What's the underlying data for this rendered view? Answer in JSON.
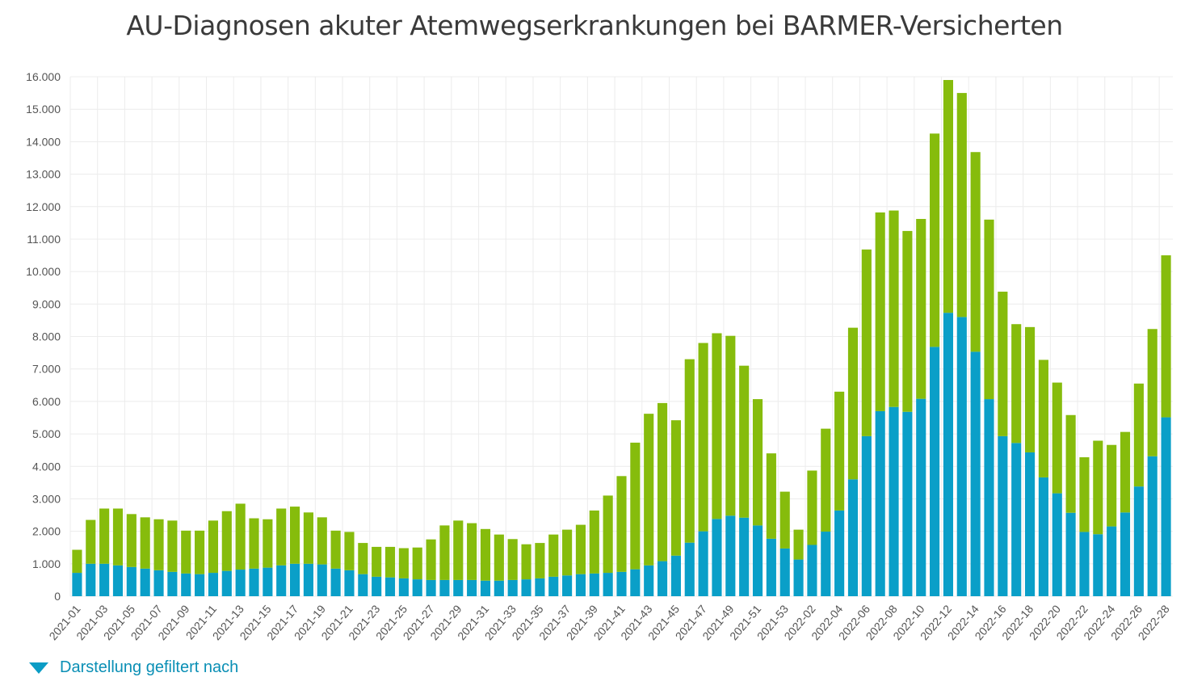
{
  "chart_data": {
    "type": "bar",
    "stacked": true,
    "title": "AU-Diagnosen akuter Atemwegserkrankungen bei BARMER-Versicherten",
    "xlabel": "",
    "ylabel": "",
    "ylim": [
      0,
      16000
    ],
    "yticks": [
      "0",
      "1.000",
      "2.000",
      "3.000",
      "4.000",
      "5.000",
      "6.000",
      "7.000",
      "8.000",
      "9.000",
      "10.000",
      "11.000",
      "12.000",
      "13.000",
      "14.000",
      "15.000",
      "16.000"
    ],
    "grid": true,
    "tick_every": 2,
    "categories": [
      "2021-01",
      "2021-02",
      "2021-03",
      "2021-04",
      "2021-05",
      "2021-06",
      "2021-07",
      "2021-08",
      "2021-09",
      "2021-10",
      "2021-11",
      "2021-12",
      "2021-13",
      "2021-14",
      "2021-15",
      "2021-16",
      "2021-17",
      "2021-18",
      "2021-19",
      "2021-20",
      "2021-21",
      "2021-22",
      "2021-23",
      "2021-24",
      "2021-25",
      "2021-26",
      "2021-27",
      "2021-28",
      "2021-29",
      "2021-30",
      "2021-31",
      "2021-32",
      "2021-33",
      "2021-34",
      "2021-35",
      "2021-36",
      "2021-37",
      "2021-38",
      "2021-39",
      "2021-40",
      "2021-41",
      "2021-42",
      "2021-43",
      "2021-44",
      "2021-45",
      "2021-46",
      "2021-47",
      "2021-48",
      "2021-49",
      "2021-50",
      "2021-51",
      "2021-52",
      "2021-53",
      "2022-01",
      "2022-02",
      "2022-03",
      "2022-04",
      "2022-05",
      "2022-06",
      "2022-07",
      "2022-08",
      "2022-09",
      "2022-10",
      "2022-11",
      "2022-12",
      "2022-13",
      "2022-14",
      "2022-15",
      "2022-16",
      "2022-17",
      "2022-18",
      "2022-19",
      "2022-20",
      "2022-21",
      "2022-22",
      "2022-23",
      "2022-24",
      "2022-25",
      "2022-26",
      "2022-27",
      "2022-28"
    ],
    "series": [
      {
        "name": "blue",
        "color": "#0a9fc8",
        "values": [
          720,
          1000,
          1000,
          950,
          900,
          850,
          800,
          750,
          700,
          680,
          720,
          780,
          820,
          850,
          880,
          950,
          1000,
          1000,
          980,
          850,
          800,
          680,
          600,
          580,
          550,
          520,
          500,
          500,
          500,
          500,
          480,
          480,
          500,
          520,
          550,
          600,
          640,
          680,
          700,
          720,
          750,
          830,
          950,
          1080,
          1250,
          1650,
          2000,
          2380,
          2480,
          2420,
          2180,
          1770,
          1470,
          1130,
          1580,
          1990,
          2640,
          3600,
          4930,
          5700,
          5830,
          5680,
          6080,
          7680,
          8730,
          8600,
          7530,
          6070,
          4930,
          4720,
          4430,
          3660,
          3170,
          2570,
          1980,
          1910,
          2150,
          2580,
          3380,
          4310,
          5510
        ]
      },
      {
        "name": "green",
        "color": "#86bc0c",
        "values": [
          710,
          1350,
          1700,
          1750,
          1630,
          1580,
          1570,
          1580,
          1320,
          1340,
          1610,
          1840,
          2030,
          1550,
          1490,
          1750,
          1760,
          1580,
          1450,
          1170,
          1180,
          960,
          920,
          940,
          930,
          980,
          1250,
          1680,
          1830,
          1750,
          1590,
          1420,
          1260,
          1080,
          1090,
          1300,
          1410,
          1520,
          1940,
          2380,
          2950,
          3900,
          4670,
          4870,
          4170,
          5650,
          5800,
          5720,
          5540,
          4680,
          3890,
          2630,
          1750,
          920,
          2290,
          3170,
          3660,
          4670,
          5750,
          6120,
          6050,
          5570,
          5540,
          6570,
          7170,
          6900,
          6150,
          5530,
          4450,
          3660,
          3860,
          3620,
          3410,
          3010,
          2300,
          2880,
          2510,
          2480,
          3170,
          3920,
          4990
        ]
      }
    ]
  },
  "footer": {
    "filter_label": "Darstellung gefiltert nach"
  }
}
